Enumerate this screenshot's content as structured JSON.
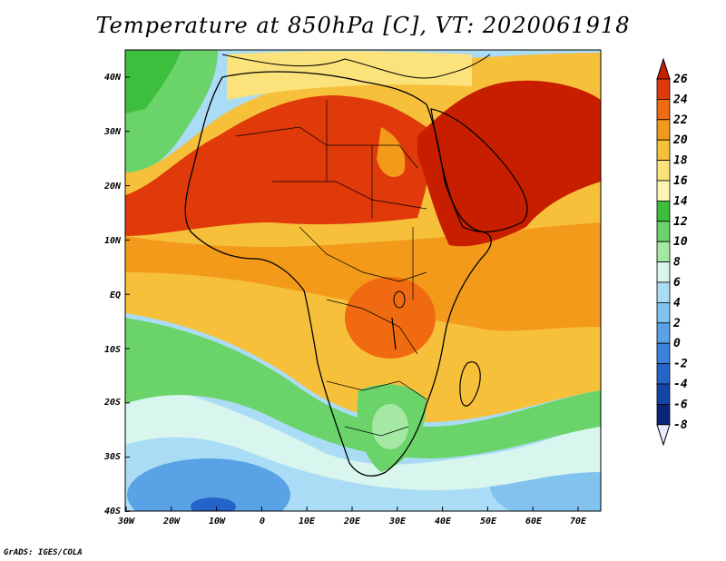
{
  "title": "Temperature at 850hPa [C], VT: 2020061918",
  "credit": "GrADS: IGES/COLA",
  "lat_labels": [
    "40N",
    "30N",
    "20N",
    "10N",
    "EQ",
    "10S",
    "20S",
    "30S",
    "40S"
  ],
  "lon_labels": [
    "30W",
    "20W",
    "10W",
    "0",
    "10E",
    "20E",
    "30E",
    "40E",
    "50E",
    "60E",
    "70E"
  ],
  "colorbar": {
    "labels": [
      "26",
      "24",
      "22",
      "20",
      "18",
      "16",
      "14",
      "12",
      "10",
      "8",
      "6",
      "4",
      "2",
      "0",
      "-2",
      "-4",
      "-6",
      "-8"
    ],
    "colors": [
      "#c81e00",
      "#e03a0a",
      "#ef6a10",
      "#f39a1a",
      "#f7c03a",
      "#fbe27a",
      "#fdf5b5",
      "#3cbf3c",
      "#6ad36a",
      "#a4e8a4",
      "#d8f5ee",
      "#aadcf5",
      "#82c2ee",
      "#5aa2e6",
      "#3a82db",
      "#2464c8",
      "#1446a8",
      "#0a2678",
      "#e8e8ff"
    ]
  },
  "regions": [
    {
      "name": "ocean-south",
      "color": "#82c2ee"
    },
    {
      "name": "ocean-cool",
      "color": "#d8f5ee"
    },
    {
      "name": "atlantic-green",
      "color": "#6ad36a"
    },
    {
      "name": "tropics-light",
      "color": "#f7c03a"
    },
    {
      "name": "tropics-orange",
      "color": "#f39a1a"
    },
    {
      "name": "sahara-hot",
      "color": "#e03a0a"
    },
    {
      "name": "arabia-hot",
      "color": "#c81e00"
    },
    {
      "name": "southern-africa",
      "color": "#6ad36a"
    }
  ]
}
